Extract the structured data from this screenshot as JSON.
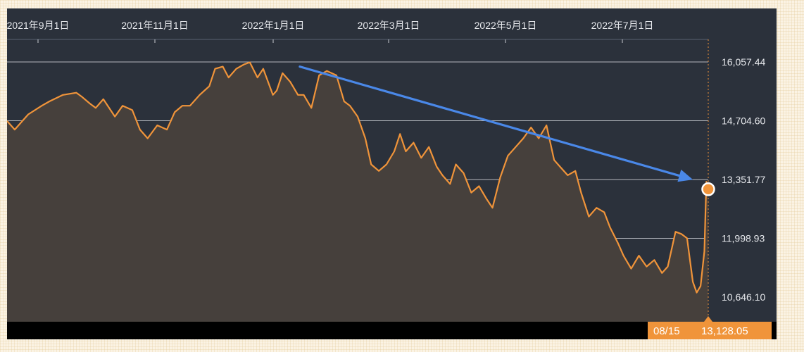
{
  "chart_data": {
    "type": "area",
    "title": "",
    "xlabel": "",
    "ylabel": "",
    "x_tick_labels": [
      "2021年9月1日",
      "2021年11月1日",
      "2022年1月1日",
      "2022年3月1日",
      "2022年5月1日",
      "2022年7月1日"
    ],
    "y_tick_labels": [
      "16,057.44",
      "14,704.60",
      "13,351.77",
      "11,998.93",
      "10,646.10"
    ],
    "y_tick_values": [
      16057.44,
      14704.6,
      13351.77,
      11998.93,
      10646.1
    ],
    "ylim": [
      10100,
      16600
    ],
    "x_range": [
      "2021-08-16",
      "2022-08-15"
    ],
    "grid": true,
    "series": [
      {
        "color": "#f0943a",
        "points": [
          [
            "2021-08-16",
            14700
          ],
          [
            "2021-08-20",
            14500
          ],
          [
            "2021-08-27",
            14850
          ],
          [
            "2021-09-03",
            15050
          ],
          [
            "2021-09-07",
            15150
          ],
          [
            "2021-09-14",
            15300
          ],
          [
            "2021-09-21",
            15350
          ],
          [
            "2021-09-24",
            15250
          ],
          [
            "2021-09-28",
            15100
          ],
          [
            "2021-10-01",
            15000
          ],
          [
            "2021-10-05",
            15200
          ],
          [
            "2021-10-11",
            14800
          ],
          [
            "2021-10-15",
            15050
          ],
          [
            "2021-10-20",
            14950
          ],
          [
            "2021-10-24",
            14500
          ],
          [
            "2021-10-28",
            14300
          ],
          [
            "2021-11-02",
            14600
          ],
          [
            "2021-11-07",
            14500
          ],
          [
            "2021-11-11",
            14900
          ],
          [
            "2021-11-15",
            15050
          ],
          [
            "2021-11-19",
            15050
          ],
          [
            "2021-11-24",
            15300
          ],
          [
            "2021-11-29",
            15500
          ],
          [
            "2021-12-02",
            15900
          ],
          [
            "2021-12-06",
            15950
          ],
          [
            "2021-12-09",
            15700
          ],
          [
            "2021-12-13",
            15900
          ],
          [
            "2021-12-17",
            16000
          ],
          [
            "2021-12-20",
            16050
          ],
          [
            "2021-12-24",
            15700
          ],
          [
            "2021-12-27",
            15900
          ],
          [
            "2022-01-01",
            15300
          ],
          [
            "2022-01-03",
            15400
          ],
          [
            "2022-01-06",
            15800
          ],
          [
            "2022-01-10",
            15600
          ],
          [
            "2022-01-14",
            15300
          ],
          [
            "2022-01-17",
            15300
          ],
          [
            "2022-01-21",
            15000
          ],
          [
            "2022-01-25",
            15750
          ],
          [
            "2022-01-29",
            15850
          ],
          [
            "2022-02-03",
            15750
          ],
          [
            "2022-02-07",
            15150
          ],
          [
            "2022-02-10",
            15050
          ],
          [
            "2022-02-14",
            14800
          ],
          [
            "2022-02-18",
            14300
          ],
          [
            "2022-02-21",
            13700
          ],
          [
            "2022-02-25",
            13550
          ],
          [
            "2022-03-01",
            13700
          ],
          [
            "2022-03-05",
            14000
          ],
          [
            "2022-03-08",
            14400
          ],
          [
            "2022-03-11",
            14000
          ],
          [
            "2022-03-15",
            14200
          ],
          [
            "2022-03-19",
            13850
          ],
          [
            "2022-03-23",
            14100
          ],
          [
            "2022-03-27",
            13650
          ],
          [
            "2022-03-30",
            13450
          ],
          [
            "2022-04-03",
            13250
          ],
          [
            "2022-04-06",
            13700
          ],
          [
            "2022-04-10",
            13500
          ],
          [
            "2022-04-14",
            13050
          ],
          [
            "2022-04-18",
            13200
          ],
          [
            "2022-04-22",
            12900
          ],
          [
            "2022-04-25",
            12700
          ],
          [
            "2022-04-29",
            13400
          ],
          [
            "2022-05-03",
            13900
          ],
          [
            "2022-05-07",
            14100
          ],
          [
            "2022-05-11",
            14300
          ],
          [
            "2022-05-15",
            14550
          ],
          [
            "2022-05-19",
            14300
          ],
          [
            "2022-05-23",
            14600
          ],
          [
            "2022-05-27",
            13800
          ],
          [
            "2022-05-30",
            13650
          ],
          [
            "2022-06-03",
            13450
          ],
          [
            "2022-06-07",
            13550
          ],
          [
            "2022-06-10",
            13050
          ],
          [
            "2022-06-14",
            12500
          ],
          [
            "2022-06-18",
            12700
          ],
          [
            "2022-06-22",
            12600
          ],
          [
            "2022-06-25",
            12250
          ],
          [
            "2022-06-29",
            11900
          ],
          [
            "2022-07-02",
            11600
          ],
          [
            "2022-07-06",
            11300
          ],
          [
            "2022-07-10",
            11600
          ],
          [
            "2022-07-14",
            11350
          ],
          [
            "2022-07-18",
            11500
          ],
          [
            "2022-07-22",
            11200
          ],
          [
            "2022-07-25",
            11350
          ],
          [
            "2022-07-29",
            12150
          ],
          [
            "2022-08-01",
            12100
          ],
          [
            "2022-08-04",
            12000
          ],
          [
            "2022-08-07",
            11000
          ],
          [
            "2022-08-09",
            10750
          ],
          [
            "2022-08-11",
            10900
          ],
          [
            "2022-08-13",
            11700
          ],
          [
            "2022-08-14",
            13300
          ],
          [
            "2022-08-15",
            13128.05
          ]
        ]
      }
    ],
    "annotations": [
      {
        "type": "arrow",
        "color": "#4a88e8",
        "from": [
          "2022-01-15",
          15950
        ],
        "to": [
          "2022-08-07",
          13350
        ]
      }
    ],
    "last_point": {
      "date": "08/15",
      "value": "13,128.05"
    }
  }
}
